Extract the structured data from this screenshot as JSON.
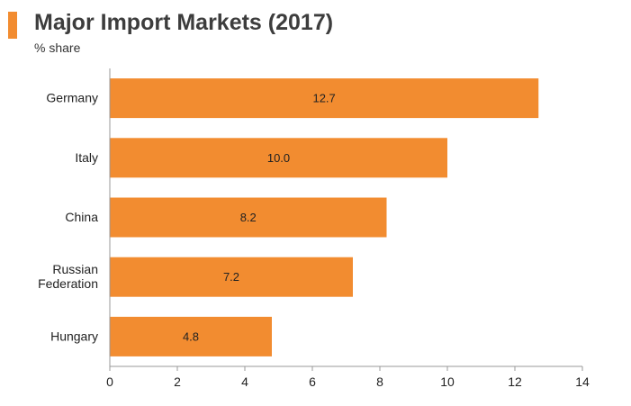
{
  "title": "Major Import Markets (2017)",
  "subtitle": "% share",
  "colors": {
    "accent": "#f28c30",
    "bar": "#f28c30",
    "axis": "#999999"
  },
  "chart_data": {
    "type": "bar",
    "orientation": "horizontal",
    "categories": [
      [
        "Germany"
      ],
      [
        "Italy"
      ],
      [
        "China"
      ],
      [
        "Russian",
        "Federation"
      ],
      [
        "Hungary"
      ]
    ],
    "values": [
      12.7,
      10.0,
      8.2,
      7.2,
      4.8
    ],
    "value_labels": [
      "12.7",
      "10.0",
      "8.2",
      "7.2",
      "4.8"
    ],
    "xlim": [
      0,
      14
    ],
    "x_ticks": [
      0,
      2,
      4,
      6,
      8,
      10,
      12,
      14
    ],
    "grid": false,
    "legend": "none"
  }
}
